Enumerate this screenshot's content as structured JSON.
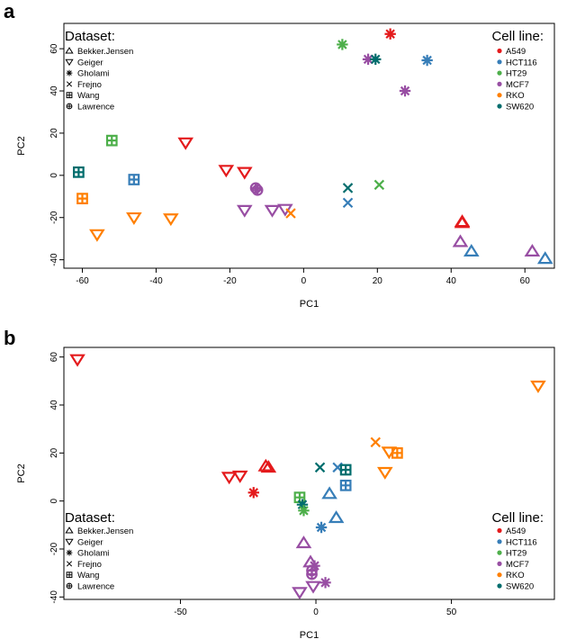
{
  "figure": {
    "label_a": "a",
    "label_b": "b"
  },
  "colors": {
    "A549": "#e41a1c",
    "HCT116": "#377eb8",
    "HT29": "#4daf4a",
    "MCF7": "#984ea3",
    "RKO": "#ff7f00",
    "SW620": "#006d6d"
  },
  "legends": {
    "dataset_title": "Dataset:",
    "cell_title": "Cell line:",
    "datasets": [
      {
        "name": "Bekker.Jensen",
        "shape": "triangle-up"
      },
      {
        "name": "Geiger",
        "shape": "triangle-down"
      },
      {
        "name": "Gholami",
        "shape": "asterisk"
      },
      {
        "name": "Frejno",
        "shape": "cross"
      },
      {
        "name": "Wang",
        "shape": "square-plus"
      },
      {
        "name": "Lawrence",
        "shape": "circle-plus"
      }
    ],
    "cell_lines": [
      "A549",
      "HCT116",
      "HT29",
      "MCF7",
      "RKO",
      "SW620"
    ]
  },
  "chart_data": [
    {
      "panel": "a",
      "type": "scatter",
      "xlabel": "PC1",
      "ylabel": "PC2",
      "xlim": [
        -65,
        68
      ],
      "ylim": [
        -44,
        72
      ],
      "xticks": [
        -60,
        -40,
        -20,
        0,
        20,
        40,
        60
      ],
      "yticks": [
        -40,
        -20,
        0,
        20,
        40,
        60
      ],
      "legend_dataset_position": "top-left",
      "legend_cell_position": "top-right",
      "points": [
        {
          "dataset": "Gholami",
          "cell": "A549",
          "x": 23.5,
          "y": 67
        },
        {
          "dataset": "Gholami",
          "cell": "HT29",
          "x": 10.5,
          "y": 62
        },
        {
          "dataset": "Gholami",
          "cell": "MCF7",
          "x": 17.5,
          "y": 55
        },
        {
          "dataset": "Gholami",
          "cell": "SW620",
          "x": 19.5,
          "y": 55
        },
        {
          "dataset": "Gholami",
          "cell": "HCT116",
          "x": 33.5,
          "y": 54.5
        },
        {
          "dataset": "Gholami",
          "cell": "MCF7",
          "x": 27.5,
          "y": 40
        },
        {
          "dataset": "Wang",
          "cell": "HT29",
          "x": -52,
          "y": 16.5
        },
        {
          "dataset": "Wang",
          "cell": "SW620",
          "x": -61,
          "y": 1.5
        },
        {
          "dataset": "Wang",
          "cell": "HCT116",
          "x": -46,
          "y": -2
        },
        {
          "dataset": "Wang",
          "cell": "RKO",
          "x": -60,
          "y": -11
        },
        {
          "dataset": "Geiger",
          "cell": "A549",
          "x": -32,
          "y": 15.5
        },
        {
          "dataset": "Geiger",
          "cell": "A549",
          "x": -21,
          "y": 2.5
        },
        {
          "dataset": "Geiger",
          "cell": "A549",
          "x": -16,
          "y": 1.5
        },
        {
          "dataset": "Geiger",
          "cell": "MCF7",
          "x": -16,
          "y": -16.5
        },
        {
          "dataset": "Geiger",
          "cell": "MCF7",
          "x": -8.5,
          "y": -16.5
        },
        {
          "dataset": "Geiger",
          "cell": "MCF7",
          "x": -5,
          "y": -16
        },
        {
          "dataset": "Geiger",
          "cell": "RKO",
          "x": -46,
          "y": -20
        },
        {
          "dataset": "Geiger",
          "cell": "RKO",
          "x": -36,
          "y": -20.5
        },
        {
          "dataset": "Geiger",
          "cell": "RKO",
          "x": -56,
          "y": -28
        },
        {
          "dataset": "Lawrence",
          "cell": "MCF7",
          "x": -13,
          "y": -6
        },
        {
          "dataset": "Lawrence",
          "cell": "MCF7",
          "x": -12.5,
          "y": -7
        },
        {
          "dataset": "Frejno",
          "cell": "SW620",
          "x": 12,
          "y": -6
        },
        {
          "dataset": "Frejno",
          "cell": "HT29",
          "x": 20.5,
          "y": -4.5
        },
        {
          "dataset": "Frejno",
          "cell": "HCT116",
          "x": 12,
          "y": -13
        },
        {
          "dataset": "Frejno",
          "cell": "RKO",
          "x": -3.5,
          "y": -18
        },
        {
          "dataset": "Bekker.Jensen",
          "cell": "A549",
          "x": 43,
          "y": -22
        },
        {
          "dataset": "Bekker.Jensen",
          "cell": "A549",
          "x": 43,
          "y": -22.5
        },
        {
          "dataset": "Bekker.Jensen",
          "cell": "MCF7",
          "x": 42.5,
          "y": -31.5
        },
        {
          "dataset": "Bekker.Jensen",
          "cell": "HCT116",
          "x": 45.5,
          "y": -36
        },
        {
          "dataset": "Bekker.Jensen",
          "cell": "MCF7",
          "x": 62,
          "y": -36
        },
        {
          "dataset": "Bekker.Jensen",
          "cell": "HCT116",
          "x": 65.5,
          "y": -39.5
        }
      ]
    },
    {
      "panel": "b",
      "type": "scatter",
      "xlabel": "PC1",
      "ylabel": "PC2",
      "xlim": [
        -93,
        88
      ],
      "ylim": [
        -41,
        64
      ],
      "xticks": [
        -50,
        0,
        50
      ],
      "yticks": [
        -40,
        -20,
        0,
        20,
        40,
        60
      ],
      "legend_dataset_position": "bottom-left",
      "legend_cell_position": "bottom-right",
      "points": [
        {
          "dataset": "Geiger",
          "cell": "A549",
          "x": -88,
          "y": 59
        },
        {
          "dataset": "Geiger",
          "cell": "RKO",
          "x": 82,
          "y": 48
        },
        {
          "dataset": "Bekker.Jensen",
          "cell": "A549",
          "x": -18.5,
          "y": 14.5
        },
        {
          "dataset": "Bekker.Jensen",
          "cell": "A549",
          "x": -17.5,
          "y": 14
        },
        {
          "dataset": "Geiger",
          "cell": "A549",
          "x": -32,
          "y": 10
        },
        {
          "dataset": "Geiger",
          "cell": "A549",
          "x": -28,
          "y": 10.5
        },
        {
          "dataset": "Gholami",
          "cell": "A549",
          "x": -23,
          "y": 3.5
        },
        {
          "dataset": "Wang",
          "cell": "HT29",
          "x": -6,
          "y": 1.5
        },
        {
          "dataset": "Gholami",
          "cell": "SW620",
          "x": -5,
          "y": -1.5
        },
        {
          "dataset": "Gholami",
          "cell": "HT29",
          "x": -4.5,
          "y": -4
        },
        {
          "dataset": "Frejno",
          "cell": "SW620",
          "x": 1.5,
          "y": 14
        },
        {
          "dataset": "Frejno",
          "cell": "HCT116",
          "x": 8,
          "y": 14
        },
        {
          "dataset": "Wang",
          "cell": "SW620",
          "x": 11,
          "y": 13
        },
        {
          "dataset": "Wang",
          "cell": "HCT116",
          "x": 11,
          "y": 6.5
        },
        {
          "dataset": "Bekker.Jensen",
          "cell": "HCT116",
          "x": 5,
          "y": 3
        },
        {
          "dataset": "Bekker.Jensen",
          "cell": "HCT116",
          "x": 7.5,
          "y": -7
        },
        {
          "dataset": "Gholami",
          "cell": "HCT116",
          "x": 2,
          "y": -11
        },
        {
          "dataset": "Frejno",
          "cell": "RKO",
          "x": 22,
          "y": 24.5
        },
        {
          "dataset": "Geiger",
          "cell": "RKO",
          "x": 27,
          "y": 20.5
        },
        {
          "dataset": "Wang",
          "cell": "RKO",
          "x": 30,
          "y": 20
        },
        {
          "dataset": "Geiger",
          "cell": "RKO",
          "x": 25.5,
          "y": 12
        },
        {
          "dataset": "Bekker.Jensen",
          "cell": "MCF7",
          "x": -4.5,
          "y": -17.5
        },
        {
          "dataset": "Bekker.Jensen",
          "cell": "MCF7",
          "x": -2,
          "y": -25.5
        },
        {
          "dataset": "Gholami",
          "cell": "MCF7",
          "x": -0.5,
          "y": -27
        },
        {
          "dataset": "Lawrence",
          "cell": "MCF7",
          "x": -1.5,
          "y": -29
        },
        {
          "dataset": "Lawrence",
          "cell": "MCF7",
          "x": -1.5,
          "y": -30.5
        },
        {
          "dataset": "Gholami",
          "cell": "MCF7",
          "x": 3.5,
          "y": -34
        },
        {
          "dataset": "Geiger",
          "cell": "MCF7",
          "x": -1,
          "y": -35.5
        },
        {
          "dataset": "Geiger",
          "cell": "MCF7",
          "x": -6,
          "y": -38
        }
      ]
    }
  ]
}
